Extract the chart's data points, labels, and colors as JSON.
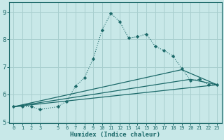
{
  "xlabel": "Humidex (Indice chaleur)",
  "bg_color": "#c8e8e8",
  "grid_color": "#a8cece",
  "line_color": "#1a6868",
  "xlim": [
    -0.5,
    23.5
  ],
  "ylim": [
    4.95,
    9.35
  ],
  "xticks": [
    0,
    1,
    2,
    3,
    5,
    6,
    7,
    8,
    9,
    10,
    11,
    12,
    13,
    14,
    15,
    16,
    17,
    18,
    19,
    20,
    21,
    22,
    23
  ],
  "yticks": [
    5,
    6,
    7,
    8,
    9
  ],
  "main_series": {
    "x": [
      0,
      1,
      2,
      3,
      5,
      6,
      7,
      8,
      9,
      10,
      11,
      12,
      13,
      14,
      15,
      16,
      17,
      18,
      19,
      20,
      21,
      22,
      23
    ],
    "y": [
      5.55,
      5.55,
      5.55,
      5.45,
      5.55,
      5.75,
      6.3,
      6.6,
      7.3,
      8.35,
      8.95,
      8.65,
      8.05,
      8.1,
      8.2,
      7.75,
      7.6,
      7.4,
      6.95,
      6.5,
      6.55,
      6.35,
      6.35
    ]
  },
  "trend_lines": [
    {
      "x": [
        0,
        19,
        23
      ],
      "y": [
        5.55,
        6.9,
        6.35
      ]
    },
    {
      "x": [
        0,
        20,
        23
      ],
      "y": [
        5.55,
        6.55,
        6.35
      ]
    },
    {
      "x": [
        0,
        23
      ],
      "y": [
        5.55,
        6.35
      ]
    }
  ]
}
